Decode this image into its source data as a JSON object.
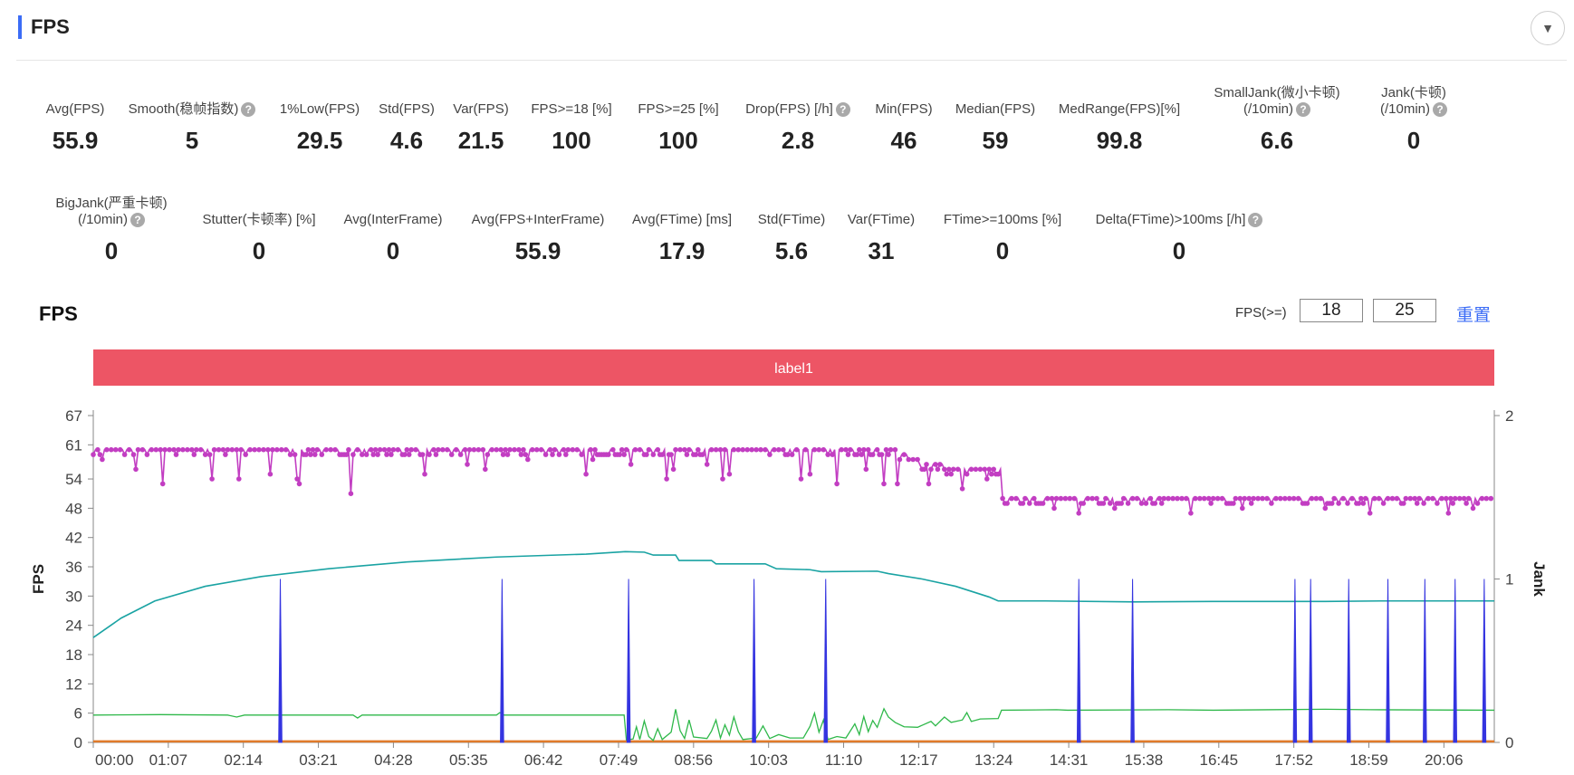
{
  "header": {
    "title": "FPS"
  },
  "toggle": {
    "icon": "chevron-down-icon",
    "glyph": "▼"
  },
  "metrics_row1": [
    {
      "label": "Avg(FPS)",
      "value": "55.9",
      "help": false
    },
    {
      "label": "Smooth(稳帧指数)",
      "value": "5",
      "help": true
    },
    {
      "label": "1%Low(FPS)",
      "value": "29.5",
      "help": false
    },
    {
      "label": "Std(FPS)",
      "value": "4.6",
      "help": false
    },
    {
      "label": "Var(FPS)",
      "value": "21.5",
      "help": false
    },
    {
      "label": "FPS>=18 [%]",
      "value": "100",
      "help": false
    },
    {
      "label": "FPS>=25 [%]",
      "value": "100",
      "help": false
    },
    {
      "label": "Drop(FPS) [/h]",
      "value": "2.8",
      "help": true
    },
    {
      "label": "Min(FPS)",
      "value": "46",
      "help": false
    },
    {
      "label": "Median(FPS)",
      "value": "59",
      "help": false
    },
    {
      "label": "MedRange(FPS)[%]",
      "value": "99.8",
      "help": false
    },
    {
      "label": "SmallJank(微小卡顿)",
      "label2": "(/10min)",
      "value": "6.6",
      "help": true
    },
    {
      "label": "Jank(卡顿)",
      "label2": "(/10min)",
      "value": "0",
      "help": true
    }
  ],
  "metrics_row2": [
    {
      "label": "BigJank(严重卡顿)",
      "label2": "(/10min)",
      "value": "0",
      "help": true
    },
    {
      "label": "Stutter(卡顿率) [%]",
      "value": "0",
      "help": false
    },
    {
      "label": "Avg(InterFrame)",
      "value": "0",
      "help": false
    },
    {
      "label": "Avg(FPS+InterFrame)",
      "value": "55.9",
      "help": false
    },
    {
      "label": "Avg(FTime) [ms]",
      "value": "17.9",
      "help": false
    },
    {
      "label": "Std(FTime)",
      "value": "5.6",
      "help": false
    },
    {
      "label": "Var(FTime)",
      "value": "31",
      "help": false
    },
    {
      "label": "FTime>=100ms [%]",
      "value": "0",
      "help": false
    },
    {
      "label": "Delta(FTime)>100ms [/h]",
      "value": "0",
      "help": true
    }
  ],
  "chart_section": {
    "title": "FPS",
    "threshold_label": "FPS(>=)",
    "threshold_1": "18",
    "threshold_2": "25",
    "reset_label": "重置"
  },
  "colors": {
    "fps": "#c23ec2",
    "teal": "#1aa3a3",
    "green": "#2fb84a",
    "jank": "#3434e0",
    "orange": "#e07a2a",
    "label_band": "#ed5565"
  },
  "chart_data": {
    "type": "line",
    "label_band": "label1",
    "ylabel": "FPS",
    "y2label": "Jank",
    "ylim": [
      0,
      67
    ],
    "y_ticks": [
      0,
      6,
      12,
      18,
      24,
      30,
      36,
      42,
      48,
      54,
      61,
      67
    ],
    "y2lim": [
      0,
      2
    ],
    "y2_ticks": [
      0,
      1,
      2
    ],
    "x_tick_labels": [
      "00:00",
      "01:07",
      "02:14",
      "03:21",
      "04:28",
      "05:35",
      "06:42",
      "07:49",
      "08:56",
      "10:03",
      "11:10",
      "12:17",
      "13:24",
      "14:31",
      "15:38",
      "16:45",
      "17:52",
      "18:59",
      "20:06"
    ],
    "x_tick_seconds": [
      0,
      67,
      134,
      201,
      268,
      335,
      402,
      469,
      536,
      603,
      670,
      737,
      804,
      871,
      938,
      1005,
      1072,
      1139,
      1206
    ],
    "x_end_seconds": 1251,
    "series": [
      {
        "style": "line-markers",
        "axis": "left",
        "plateaus": [
          [
            0,
            60
          ],
          [
            710,
            60
          ],
          [
            718,
            59
          ],
          [
            728,
            58
          ],
          [
            738,
            57
          ],
          [
            760,
            56
          ],
          [
            810,
            56
          ],
          [
            812,
            50
          ],
          [
            1251,
            50
          ]
        ],
        "dips": [
          [
            9,
            58
          ],
          [
            38,
            56
          ],
          [
            62,
            53
          ],
          [
            106,
            54
          ],
          [
            130,
            54
          ],
          [
            158,
            55
          ],
          [
            182,
            54
          ],
          [
            184,
            53
          ],
          [
            230,
            51
          ],
          [
            296,
            55
          ],
          [
            335,
            57
          ],
          [
            350,
            56
          ],
          [
            388,
            58
          ],
          [
            440,
            55
          ],
          [
            446,
            58
          ],
          [
            480,
            57
          ],
          [
            512,
            54
          ],
          [
            518,
            56
          ],
          [
            548,
            57
          ],
          [
            563,
            54
          ],
          [
            568,
            55
          ],
          [
            632,
            54
          ],
          [
            640,
            55
          ],
          [
            664,
            53
          ],
          [
            690,
            56
          ],
          [
            706,
            53
          ],
          [
            718,
            53
          ],
          [
            746,
            53
          ],
          [
            776,
            52
          ],
          [
            798,
            54
          ],
          [
            858,
            48
          ],
          [
            880,
            47
          ],
          [
            912,
            48
          ],
          [
            980,
            47
          ],
          [
            1027,
            48
          ],
          [
            1100,
            48
          ],
          [
            1140,
            47
          ],
          [
            1210,
            47
          ],
          [
            1232,
            48
          ]
        ]
      },
      {
        "style": "line",
        "axis": "left",
        "points": [
          [
            0,
            21.5
          ],
          [
            25,
            25.5
          ],
          [
            55,
            29
          ],
          [
            100,
            32
          ],
          [
            150,
            34
          ],
          [
            210,
            35.6
          ],
          [
            280,
            37
          ],
          [
            360,
            38
          ],
          [
            440,
            38.6
          ],
          [
            475,
            39.1
          ],
          [
            492,
            39
          ],
          [
            500,
            38.4
          ],
          [
            520,
            38.4
          ],
          [
            523,
            37.3
          ],
          [
            552,
            37.3
          ],
          [
            556,
            36.6
          ],
          [
            600,
            36.6
          ],
          [
            610,
            35.6
          ],
          [
            640,
            35.4
          ],
          [
            650,
            35
          ],
          [
            700,
            35.1
          ],
          [
            710,
            34.6
          ],
          [
            740,
            33.5
          ],
          [
            770,
            32
          ],
          [
            800,
            29.8
          ],
          [
            808,
            29
          ],
          [
            850,
            29
          ],
          [
            930,
            28.8
          ],
          [
            1000,
            28.9
          ],
          [
            1100,
            28.9
          ],
          [
            1150,
            29
          ],
          [
            1251,
            29
          ]
        ]
      },
      {
        "style": "line",
        "axis": "left",
        "points": [
          [
            0,
            5.6
          ],
          [
            60,
            5.7
          ],
          [
            120,
            5.6
          ],
          [
            128,
            5.2
          ],
          [
            135,
            5.6
          ],
          [
            232,
            5.6
          ],
          [
            236,
            5.0
          ],
          [
            240,
            5.6
          ],
          [
            320,
            5.6
          ],
          [
            360,
            5.6
          ],
          [
            363,
            6.1
          ],
          [
            367,
            5.6
          ],
          [
            474,
            5.6
          ],
          [
            476,
            0.5
          ],
          [
            482,
            0.7
          ],
          [
            485,
            3.2
          ],
          [
            488,
            0.6
          ],
          [
            492,
            4.4
          ],
          [
            496,
            1.2
          ],
          [
            500,
            0.4
          ],
          [
            504,
            2.8
          ],
          [
            508,
            0.6
          ],
          [
            516,
            2.1
          ],
          [
            520,
            6.8
          ],
          [
            524,
            2.4
          ],
          [
            528,
            0.8
          ],
          [
            532,
            4.6
          ],
          [
            536,
            1.1
          ],
          [
            548,
            0.8
          ],
          [
            552,
            2.3
          ],
          [
            556,
            4.6
          ],
          [
            560,
            0.9
          ],
          [
            564,
            3.6
          ],
          [
            568,
            1.5
          ],
          [
            572,
            5.2
          ],
          [
            576,
            2.2
          ],
          [
            580,
            0.6
          ],
          [
            592,
            0.9
          ],
          [
            598,
            3.4
          ],
          [
            604,
            0.8
          ],
          [
            612,
            1.6
          ],
          [
            622,
            0.9
          ],
          [
            634,
            0.9
          ],
          [
            640,
            3.3
          ],
          [
            644,
            6.0
          ],
          [
            648,
            2.1
          ],
          [
            652,
            4.6
          ],
          [
            656,
            0.6
          ],
          [
            664,
            1.2
          ],
          [
            672,
            0.9
          ],
          [
            680,
            3.8
          ],
          [
            684,
            1.6
          ],
          [
            688,
            5.3
          ],
          [
            692,
            2.2
          ],
          [
            696,
            4.5
          ],
          [
            700,
            3.1
          ],
          [
            706,
            6.9
          ],
          [
            710,
            5.2
          ],
          [
            716,
            4.1
          ],
          [
            724,
            3.2
          ],
          [
            736,
            3.1
          ],
          [
            748,
            4.3
          ],
          [
            752,
            3.4
          ],
          [
            760,
            5.2
          ],
          [
            766,
            4.1
          ],
          [
            776,
            4.6
          ],
          [
            780,
            6.1
          ],
          [
            784,
            4.3
          ],
          [
            792,
            4.8
          ],
          [
            808,
            4.9
          ],
          [
            811,
            6.6
          ],
          [
            860,
            6.7
          ],
          [
            870,
            6.6
          ],
          [
            960,
            6.7
          ],
          [
            1000,
            6.6
          ],
          [
            1100,
            6.8
          ],
          [
            1140,
            6.7
          ],
          [
            1251,
            6.6
          ]
        ]
      },
      {
        "style": "spikes",
        "axis": "right",
        "points": [
          167,
          365,
          478,
          590,
          654,
          880,
          928,
          1073,
          1087,
          1121,
          1156,
          1189,
          1216,
          1242
        ]
      },
      {
        "style": "line",
        "axis": "left",
        "points": [
          [
            0,
            0.2
          ],
          [
            1251,
            0.2
          ]
        ]
      }
    ]
  }
}
